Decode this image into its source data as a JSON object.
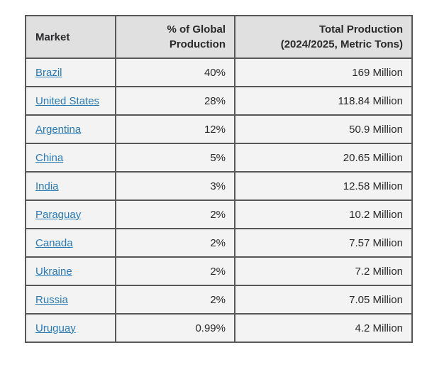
{
  "chart_data": {
    "type": "table",
    "title": "",
    "columns": [
      "Market",
      "% of Global Production",
      "Total Production (2024/2025, Metric Tons)"
    ],
    "rows": [
      [
        "Brazil",
        "40%",
        "169 Million"
      ],
      [
        "United States",
        "28%",
        "118.84 Million"
      ],
      [
        "Argentina",
        "12%",
        "50.9 Million"
      ],
      [
        "China",
        "5%",
        "20.65 Million"
      ],
      [
        "India",
        "3%",
        "12.58 Million"
      ],
      [
        "Paraguay",
        "2%",
        "10.2 Million"
      ],
      [
        "Canada",
        "2%",
        "7.57 Million"
      ],
      [
        "Ukraine",
        "2%",
        "7.2 Million"
      ],
      [
        "Russia",
        "2%",
        "7.05 Million"
      ],
      [
        "Uruguay",
        "0.99%",
        "4.2 Million"
      ]
    ]
  },
  "table": {
    "headers": [
      {
        "lines": [
          "Market"
        ],
        "align": "left"
      },
      {
        "lines": [
          "% of Global",
          "Production"
        ],
        "align": "right"
      },
      {
        "lines": [
          "Total Production",
          "(2024/2025, Metric Tons)"
        ],
        "align": "right"
      }
    ],
    "rows": [
      {
        "market": "Brazil",
        "share": "40%",
        "total": "169 Million"
      },
      {
        "market": "United States",
        "share": "28%",
        "total": "118.84 Million"
      },
      {
        "market": "Argentina",
        "share": "12%",
        "total": "50.9 Million"
      },
      {
        "market": "China",
        "share": "5%",
        "total": "20.65 Million"
      },
      {
        "market": "India",
        "share": "3%",
        "total": "12.58 Million"
      },
      {
        "market": "Paraguay",
        "share": "2%",
        "total": "10.2 Million"
      },
      {
        "market": "Canada",
        "share": "2%",
        "total": "7.57 Million"
      },
      {
        "market": "Ukraine",
        "share": "2%",
        "total": "7.2 Million"
      },
      {
        "market": "Russia",
        "share": "2%",
        "total": "7.05 Million"
      },
      {
        "market": "Uruguay",
        "share": "0.99%",
        "total": "4.2 Million"
      }
    ],
    "colors": {
      "header_bg": "#e0e0e1",
      "row_bg": "#f3f3f4",
      "border": "#58585a",
      "text": "#2a2a2c",
      "link": "#2a7ab8"
    }
  }
}
